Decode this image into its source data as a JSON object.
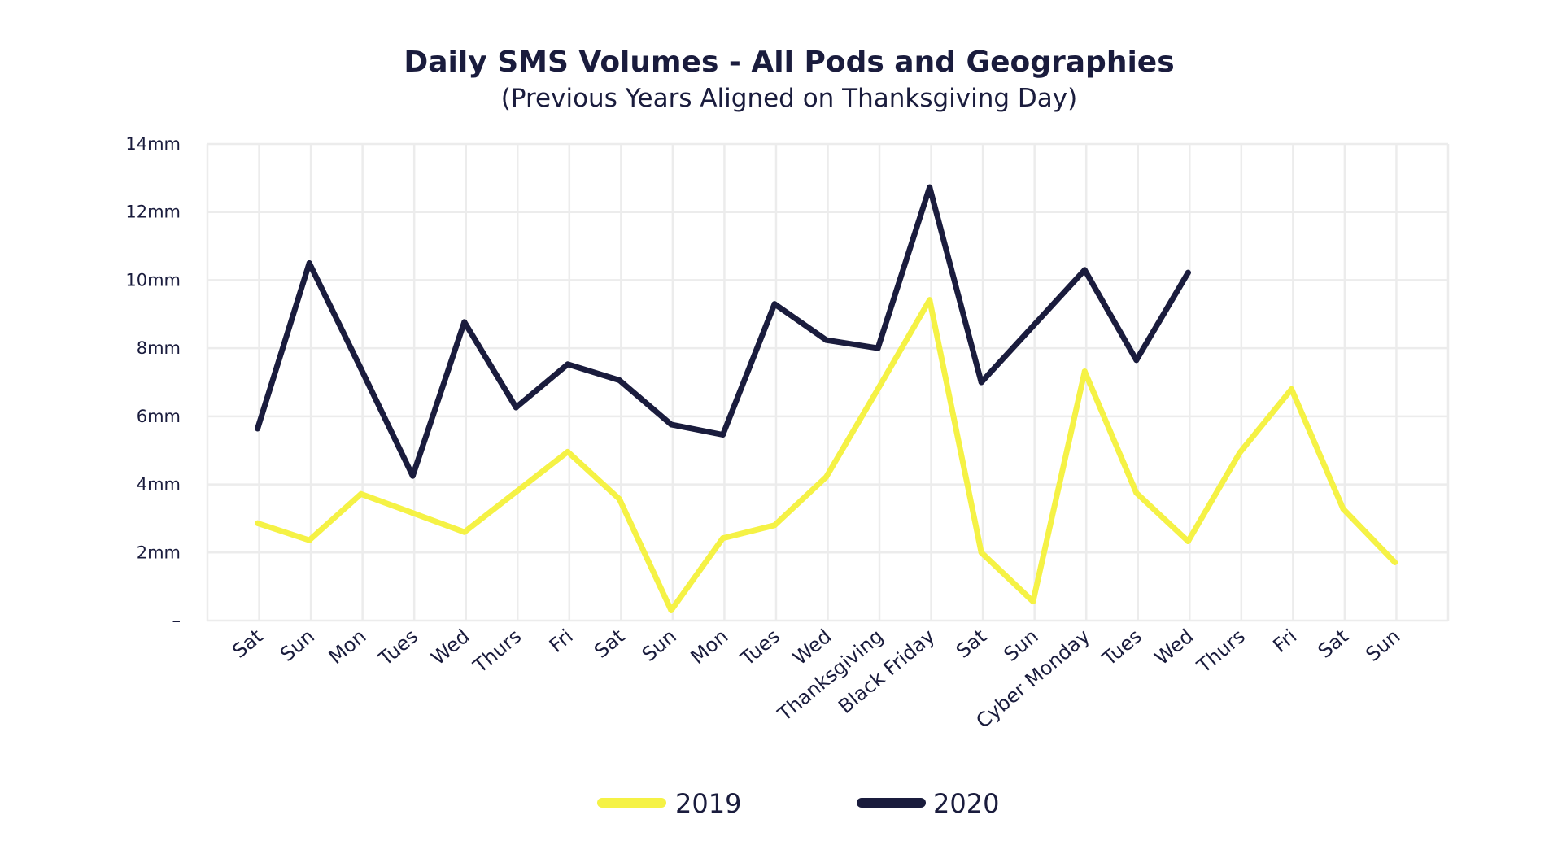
{
  "chart_data": {
    "type": "line",
    "title": "Daily SMS Volumes - All Pods and Geographies",
    "subtitle": "(Previous Years Aligned on Thanksgiving Day)",
    "xlabel": "",
    "ylabel": "",
    "categories": [
      "Sat",
      "Sun",
      "Mon",
      "Tues",
      "Wed",
      "Thurs",
      "Fri",
      "Sat",
      "Sun",
      "Mon",
      "Tues",
      "Wed",
      "Thanksgiving",
      "Black Friday",
      "Sat",
      "Sun",
      "Cyber Monday",
      "Tues",
      "Wed",
      "Thurs",
      "Fri",
      "Sat",
      "Sun"
    ],
    "ylim": [
      0,
      14
    ],
    "yticks": [
      0,
      2,
      4,
      6,
      8,
      10,
      12,
      14
    ],
    "ytick_labels": [
      "–",
      "2mm",
      "4mm",
      "6mm",
      "8mm",
      "10mm",
      "12mm",
      "14mm"
    ],
    "grid": true,
    "legend_position": "bottom",
    "series": [
      {
        "name": "2019",
        "color": "#f5f245",
        "values": [
          2.86,
          2.36,
          3.72,
          3.16,
          2.6,
          3.78,
          4.96,
          3.57,
          0.3,
          2.42,
          2.8,
          4.22,
          6.8,
          9.42,
          2.0,
          0.56,
          7.32,
          3.75,
          2.33,
          4.93,
          6.8,
          3.28,
          1.71
        ]
      },
      {
        "name": "2020",
        "color": "#1a1c3d",
        "values": [
          5.64,
          10.5,
          7.4,
          4.25,
          8.77,
          6.26,
          7.53,
          7.06,
          5.76,
          5.46,
          9.3,
          8.24,
          8.0,
          12.73,
          7.0,
          8.65,
          10.3,
          7.65,
          10.22,
          null,
          null,
          null,
          null
        ]
      }
    ]
  }
}
